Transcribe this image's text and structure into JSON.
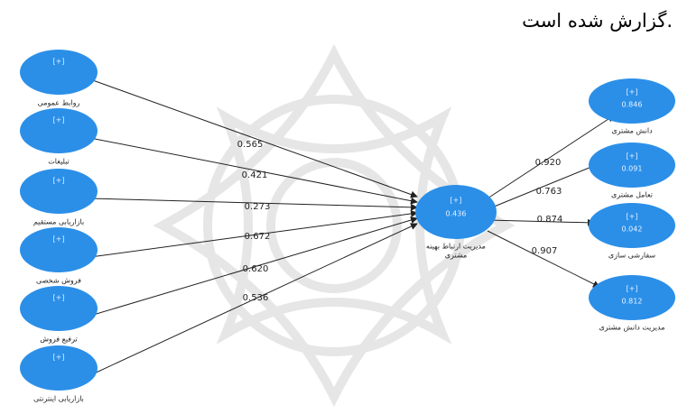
{
  "heading": "گزارش شده است.",
  "predictors": [
    {
      "label": "روابط عمومی",
      "button": "[+]"
    },
    {
      "label": "تبلیغات",
      "button": "[+]"
    },
    {
      "label": "بازاریابی مستقیم",
      "button": "[+]"
    },
    {
      "label": "فروش شخصی",
      "button": "[+]"
    },
    {
      "label": "ترفیع فروش",
      "button": "[+]"
    },
    {
      "label": "بازاریابی اینترنتی",
      "button": "[+]"
    }
  ],
  "center": {
    "label_lines": [
      "مدیریت ارتباط بهینه",
      "مشتری"
    ],
    "button": "[+]",
    "r2": "0.436"
  },
  "outcomes": [
    {
      "label": "دانش مشتری",
      "button": "[+]",
      "r2": "0.846"
    },
    {
      "label": "تعامل مشتری",
      "button": "[+]",
      "r2": "0.091"
    },
    {
      "label": "سفارشی سازی",
      "button": "[+]",
      "r2": "0.042"
    },
    {
      "label": "مدیریت دانش مشتری",
      "button": "[+]",
      "r2": "0.812"
    }
  ],
  "predictor_paths": [
    "0.565",
    "0.421",
    "0.273",
    "0.672",
    "0.620",
    "0.536"
  ],
  "outcome_paths": [
    "0.920",
    "0.763",
    "0.874",
    "0.907"
  ]
}
